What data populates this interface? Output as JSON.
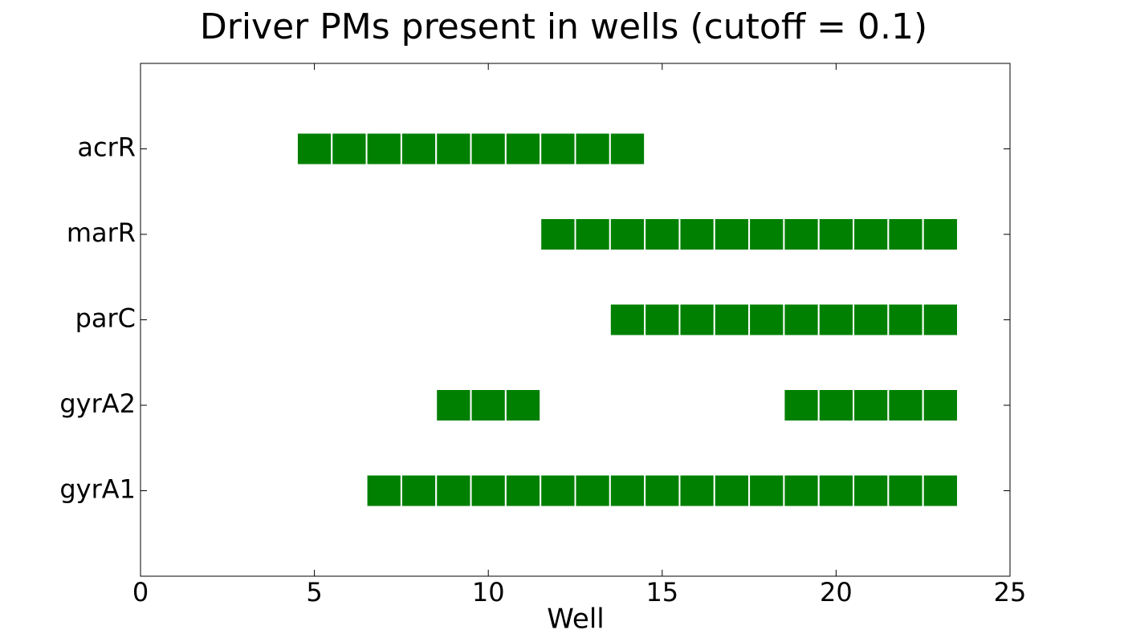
{
  "chart_data": {
    "type": "presence",
    "title": "Driver PMs present in wells (cutoff = 0.1)",
    "xlabel": "Well",
    "color": "#008000",
    "xlim": [
      0,
      25
    ],
    "xticks": [
      0,
      5,
      10,
      15,
      20,
      25
    ],
    "rows": [
      {
        "name": "gyrA1",
        "wells": [
          7,
          8,
          9,
          10,
          11,
          12,
          13,
          14,
          15,
          16,
          17,
          18,
          19,
          20,
          21,
          22,
          23
        ]
      },
      {
        "name": "gyrA2",
        "wells": [
          9,
          10,
          11,
          19,
          20,
          21,
          22,
          23
        ]
      },
      {
        "name": "parC",
        "wells": [
          14,
          15,
          16,
          17,
          18,
          19,
          20,
          21,
          22,
          23
        ]
      },
      {
        "name": "marR",
        "wells": [
          12,
          13,
          14,
          15,
          16,
          17,
          18,
          19,
          20,
          21,
          22,
          23
        ]
      },
      {
        "name": "acrR",
        "wells": [
          5,
          6,
          7,
          8,
          9,
          10,
          11,
          12,
          13,
          14
        ]
      }
    ]
  }
}
